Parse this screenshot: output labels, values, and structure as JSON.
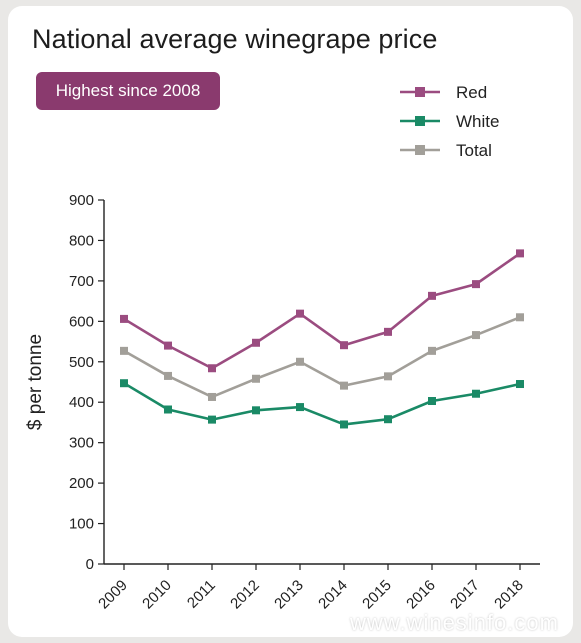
{
  "title": "National average winegrape price",
  "badge": "Highest since 2008",
  "watermark": "www.winesinfo.com",
  "chart_data": {
    "type": "line",
    "title": "National average winegrape price",
    "ylabel": "$ per tonne",
    "xlabel": "",
    "x": [
      "2009",
      "2010",
      "2011",
      "2012",
      "2013",
      "2014",
      "2015",
      "2016",
      "2017",
      "2018"
    ],
    "ylim": [
      0,
      900
    ],
    "yticks": [
      0,
      100,
      200,
      300,
      400,
      500,
      600,
      700,
      800,
      900
    ],
    "grid": false,
    "legend_position": "top-right",
    "series": [
      {
        "name": "Red",
        "color": "#9b4c80",
        "values": [
          606,
          540,
          484,
          547,
          619,
          541,
          574,
          663,
          692,
          768
        ]
      },
      {
        "name": "White",
        "color": "#1a8a66",
        "values": [
          447,
          382,
          357,
          380,
          388,
          345,
          358,
          403,
          421,
          445
        ]
      },
      {
        "name": "Total",
        "color": "#a29f99",
        "values": [
          527,
          465,
          413,
          458,
          500,
          441,
          464,
          527,
          566,
          610
        ]
      }
    ]
  }
}
